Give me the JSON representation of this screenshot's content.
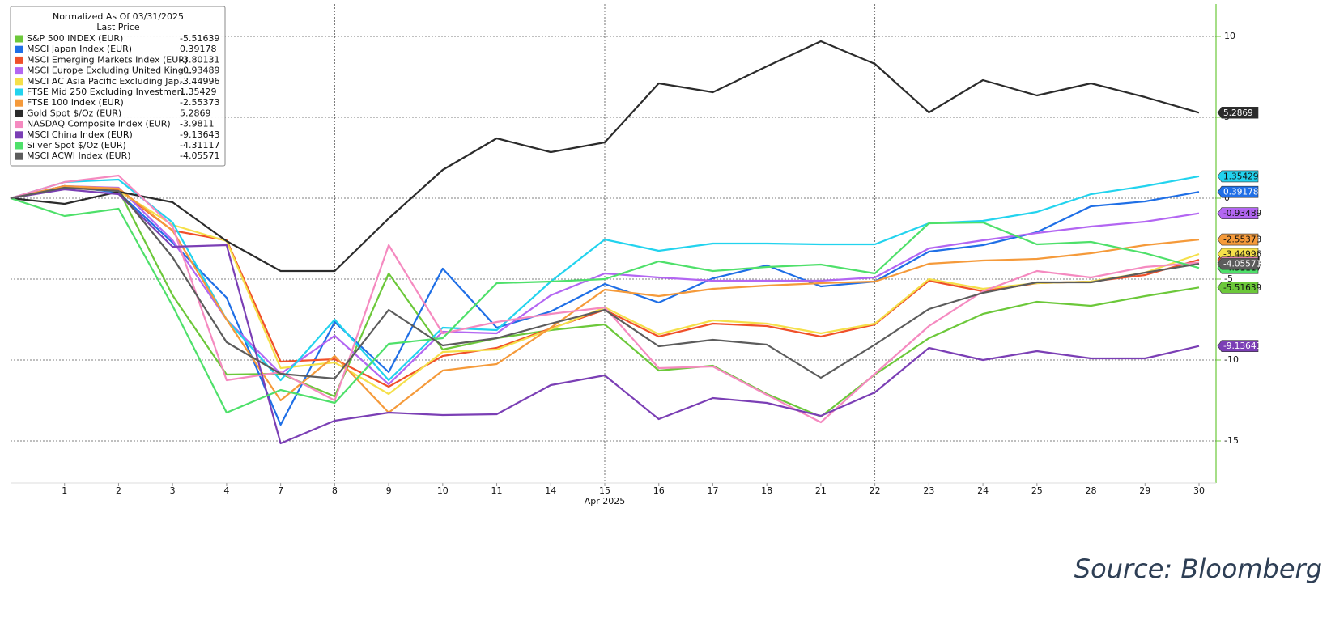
{
  "chart_data": {
    "type": "line",
    "legend_title": "Normalized As Of 03/31/2025",
    "legend_subtitle": "Last Price",
    "categories": [
      null,
      "1",
      "2",
      "3",
      "4",
      "7",
      "8",
      "9",
      "10",
      "11",
      "14",
      "15",
      "16",
      "17",
      "18",
      "21",
      "22",
      "23",
      "24",
      "25",
      "28",
      "29",
      "30"
    ],
    "x_sublabel": "Apr 2025",
    "ylim": [
      -17.6,
      12
    ],
    "yticks": [
      -15,
      -10,
      -5,
      0,
      5,
      10
    ],
    "grid": true,
    "legend_position": "upper left",
    "source": "Source: Bloomberg",
    "series": [
      {
        "name": "S&P 500 INDEX (EUR)",
        "color": "#6cc83a",
        "values": [
          0,
          0.65,
          0.5,
          -6,
          -10.9,
          -10.85,
          -12.25,
          -4.65,
          -9.35,
          -8.65,
          -8.15,
          -7.8,
          -10.65,
          -10.35,
          -12.1,
          -13.5,
          -10.9,
          -8.65,
          -7.15,
          -6.4,
          -6.65,
          -6.05,
          -5.51639
        ]
      },
      {
        "name": "MSCI Japan Index (EUR)",
        "color": "#1f6fe6",
        "values": [
          0,
          0.75,
          0.35,
          -2.75,
          -6.15,
          -14,
          -7.65,
          -10.75,
          -4.35,
          -8,
          -7,
          -5.3,
          -6.45,
          -4.95,
          -4.15,
          -5.45,
          -5.15,
          -3.3,
          -2.9,
          -2.1,
          -0.5,
          -0.2,
          0.39178
        ]
      },
      {
        "name": "MSCI Emerging Markets Index (EUR)",
        "color": "#f0502a",
        "values": [
          0,
          0.75,
          0.5,
          -2,
          -2.6,
          -10.1,
          -9.95,
          -11.65,
          -9.75,
          -9.25,
          -8.05,
          -6.9,
          -8.55,
          -7.75,
          -7.9,
          -8.55,
          -7.8,
          -5.1,
          -5.75,
          -5.25,
          -5.15,
          -4.75,
          -3.80131
        ]
      },
      {
        "name": "MSCI Europe Excluding United King...",
        "color": "#b366f2",
        "values": [
          0,
          0.75,
          0.65,
          -2.6,
          -7.5,
          -10.85,
          -8.5,
          -11.5,
          -8.25,
          -8.35,
          -6,
          -4.65,
          -4.9,
          -5.1,
          -5.1,
          -5.1,
          -4.9,
          -3.1,
          -2.6,
          -2.15,
          -1.75,
          -1.45,
          -0.93489
        ]
      },
      {
        "name": "MSCI AC Asia Pacific Excluding Jap...",
        "color": "#f5e04a",
        "values": [
          0,
          0.65,
          0.45,
          -1.65,
          -2.65,
          -10.5,
          -10.15,
          -12.1,
          -9.5,
          -9.35,
          -8.1,
          -6.75,
          -8.4,
          -7.55,
          -7.75,
          -8.35,
          -7.75,
          -5,
          -5.6,
          -5.25,
          -5.15,
          -4.6,
          -3.44996
        ]
      },
      {
        "name": "FTSE Mid 250 Excluding Investmen...",
        "color": "#22d3ee",
        "values": [
          0,
          1,
          1.15,
          -1.5,
          -7.5,
          -11.25,
          -7.5,
          -11.25,
          -8,
          -8.15,
          -5.15,
          -2.55,
          -3.25,
          -2.8,
          -2.8,
          -2.85,
          -2.85,
          -1.55,
          -1.4,
          -0.85,
          0.25,
          0.75,
          1.35429
        ]
      },
      {
        "name": "FTSE 100 Index (EUR)",
        "color": "#f59a3a",
        "values": [
          0,
          0.75,
          0.6,
          -2,
          -7.5,
          -12.5,
          -9.75,
          -13.25,
          -10.65,
          -10.25,
          -8,
          -5.65,
          -6.05,
          -5.6,
          -5.4,
          -5.25,
          -5.15,
          -4.05,
          -3.85,
          -3.75,
          -3.4,
          -2.9,
          -2.55373
        ]
      },
      {
        "name": "Gold Spot $/Oz (EUR)",
        "color": "#2b2b2b",
        "values": [
          0,
          -0.35,
          0.4,
          -0.25,
          -2.65,
          -4.5,
          -4.5,
          -1.25,
          1.75,
          3.7,
          2.85,
          3.45,
          7.1,
          6.55,
          8.15,
          9.7,
          8.3,
          5.3,
          7.3,
          6.35,
          7.1,
          6.25,
          5.2869
        ]
      },
      {
        "name": "NASDAQ Composite Index (EUR)",
        "color": "#f58ac0",
        "values": [
          0,
          1,
          1.4,
          -1.75,
          -11.25,
          -10.75,
          -12.5,
          -2.9,
          -8.35,
          -7.65,
          -7.15,
          -6.75,
          -10.5,
          -10.4,
          -12.15,
          -13.85,
          -10.85,
          -7.9,
          -5.75,
          -4.5,
          -4.9,
          -4.25,
          -3.9811
        ]
      },
      {
        "name": "MSCI China Index (EUR)",
        "color": "#7b3fb5",
        "values": [
          0,
          0.55,
          0.25,
          -3,
          -2.9,
          -15.15,
          -13.75,
          -13.25,
          -13.4,
          -13.35,
          -11.55,
          -10.95,
          -13.65,
          -12.35,
          -12.65,
          -13.45,
          -12,
          -9.25,
          -10,
          -9.45,
          -9.9,
          -9.9,
          -9.13643
        ]
      },
      {
        "name": "Silver Spot $/Oz (EUR)",
        "color": "#4ee06a",
        "values": [
          0,
          -1.1,
          -0.65,
          -6.65,
          -13.25,
          -11.85,
          -12.65,
          -9,
          -8.65,
          -5.25,
          -5.15,
          -5,
          -3.9,
          -4.5,
          -4.25,
          -4.1,
          -4.65,
          -1.55,
          -1.5,
          -2.85,
          -2.7,
          -3.4,
          -4.31117
        ]
      },
      {
        "name": "MSCI ACWI Index (EUR)",
        "color": "#5c5c5c",
        "values": [
          0,
          0.65,
          0.45,
          -3.65,
          -8.9,
          -10.85,
          -11.15,
          -6.9,
          -9.1,
          -8.65,
          -7.75,
          -6.9,
          -9.15,
          -8.75,
          -9.05,
          -11.1,
          -9.05,
          -6.85,
          -5.85,
          -5.2,
          -5.2,
          -4.6,
          -4.05571
        ]
      }
    ]
  }
}
